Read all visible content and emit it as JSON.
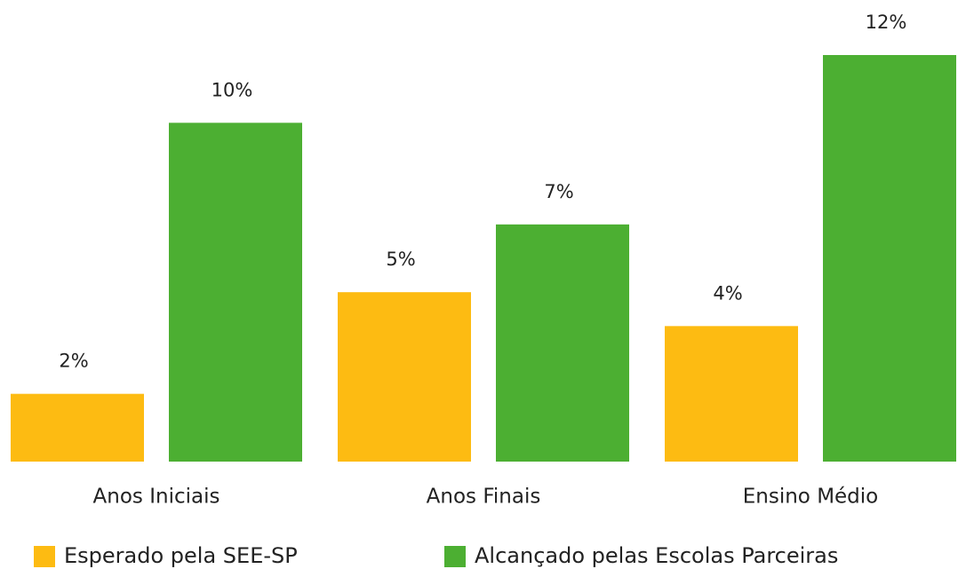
{
  "chart_data": {
    "type": "bar",
    "categories": [
      "Anos Iniciais",
      "Anos Finais",
      "Ensino Médio"
    ],
    "series": [
      {
        "name": "Esperado pela SEE-SP",
        "color": "#fdbb12",
        "values": [
          2,
          5,
          4
        ],
        "value_labels": [
          "2%",
          "5%",
          "4%"
        ]
      },
      {
        "name": "Alcançado pelas Escolas Parceiras",
        "color": "#4caf32",
        "values": [
          10,
          7,
          12
        ],
        "value_labels": [
          "10%",
          "7%",
          "12%"
        ]
      }
    ]
  }
}
